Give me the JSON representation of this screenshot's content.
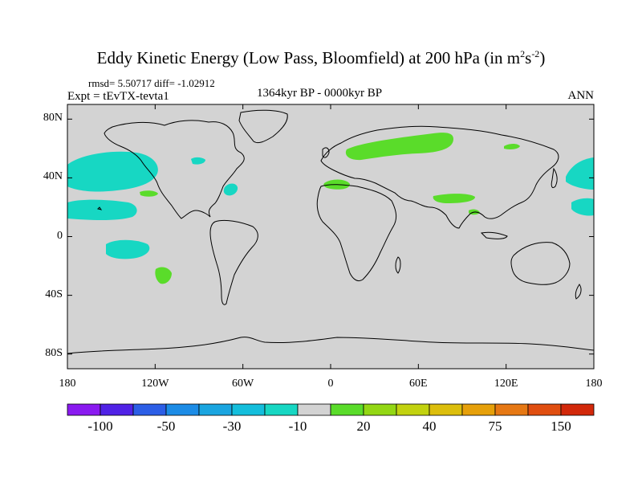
{
  "title": {
    "main": "Eddy Kinetic Energy (Low Pass, Bloomfield) at 200 hPa (in m",
    "unit_sup1": "2",
    "unit_mid": "s",
    "unit_sup2": "-2",
    "close": ")"
  },
  "stats": {
    "rmsd_text": "rmsd= 5.50717 diff= -1.02912"
  },
  "experiment": "Expt = tEvTX-tevta1",
  "period": "1364kyr BP - 0000kyr BP",
  "season": "ANN",
  "map": {
    "lat_range": [
      -90,
      90
    ],
    "lon_range": [
      -180,
      180
    ],
    "lat_ticks": [
      {
        "value": 80,
        "label": "80N"
      },
      {
        "value": 40,
        "label": "40N"
      },
      {
        "value": 0,
        "label": "0"
      },
      {
        "value": -40,
        "label": "40S"
      },
      {
        "value": -80,
        "label": "80S"
      }
    ],
    "lon_ticks": [
      {
        "value": -180,
        "label": "180"
      },
      {
        "value": -120,
        "label": "120W"
      },
      {
        "value": -60,
        "label": "60W"
      },
      {
        "value": 0,
        "label": "0"
      },
      {
        "value": 60,
        "label": "60E"
      },
      {
        "value": 120,
        "label": "120E"
      },
      {
        "value": 180,
        "label": "180"
      }
    ],
    "background_color": "#d3d3d3",
    "anomaly_regions": [
      {
        "name": "north-pacific-negative",
        "class": "-10 to -30",
        "color": "#17d7c3",
        "center_lon": -170,
        "center_lat": 42
      },
      {
        "name": "subtropical-pacific-negative",
        "class": "-10 to -30",
        "color": "#17d7c3",
        "center_lon": -165,
        "center_lat": 20
      },
      {
        "name": "eastern-pacific-negative",
        "class": "-10 to -30",
        "color": "#17d7c3",
        "center_lon": -145,
        "center_lat": -7
      },
      {
        "name": "north-atlantic-negative",
        "class": "-10 to -30",
        "color": "#17d7c3",
        "center_lon": -70,
        "center_lat": 33
      },
      {
        "name": "east-asia-negative",
        "class": "-10 to -30",
        "color": "#17d7c3",
        "center_lon": 170,
        "center_lat": 30
      },
      {
        "name": "eurasia-positive",
        "class": "10 to 20",
        "color": "#5adc2a",
        "center_lon": 40,
        "center_lat": 58
      },
      {
        "name": "mediterranean-positive",
        "class": "10 to 20",
        "color": "#5adc2a",
        "center_lon": 10,
        "center_lat": 36
      },
      {
        "name": "central-asia-positive",
        "class": "10 to 20",
        "color": "#5adc2a",
        "center_lon": 75,
        "center_lat": 28
      },
      {
        "name": "south-pacific-positive",
        "class": "10 to 20",
        "color": "#5adc2a",
        "center_lon": -117,
        "center_lat": -25
      }
    ]
  },
  "colorbar": {
    "colors": [
      "#8a1af0",
      "#5022e6",
      "#2c5ee6",
      "#1c8ce6",
      "#1aa5e0",
      "#14bedc",
      "#17d7c3",
      "#d3d3d3",
      "#5adc2a",
      "#93d714",
      "#c2d20f",
      "#dcbe0c",
      "#e6a00a",
      "#e67814",
      "#e04e10",
      "#d2280a"
    ],
    "labels": [
      "-100",
      "-50",
      "-30",
      "-10",
      "20",
      "40",
      "75",
      "150"
    ]
  }
}
